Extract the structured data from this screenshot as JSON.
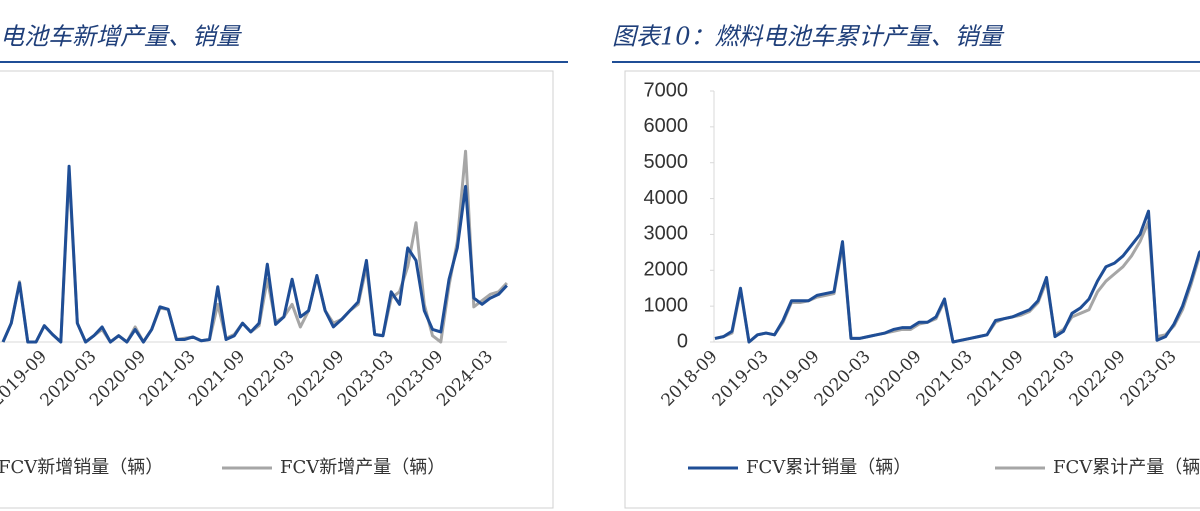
{
  "chart_data": [
    {
      "type": "line",
      "title": "电池车新增产量、销量",
      "categories": [
        null,
        null,
        null,
        null,
        null,
        "2019-09",
        null,
        null,
        null,
        null,
        null,
        "2020-03",
        null,
        null,
        null,
        null,
        null,
        "2020-09",
        null,
        null,
        null,
        null,
        null,
        "2021-03",
        null,
        null,
        null,
        null,
        null,
        "2021-09",
        null,
        null,
        null,
        null,
        null,
        "2022-03",
        null,
        null,
        null,
        null,
        null,
        "2022-09",
        null,
        null,
        null,
        null,
        null,
        "2023-03",
        null,
        null,
        null,
        null,
        null,
        "2023-09",
        null,
        null,
        null,
        null,
        null,
        "2024-03",
        null,
        null
      ],
      "series": [
        {
          "name": "FCV新增销量（辆）",
          "color": "#1f4e96",
          "values": [
            0,
            150,
            470,
            0,
            0,
            130,
            60,
            0,
            1400,
            150,
            0,
            50,
            120,
            0,
            50,
            0,
            100,
            0,
            100,
            280,
            260,
            20,
            20,
            40,
            10,
            20,
            440,
            20,
            50,
            150,
            80,
            150,
            620,
            140,
            200,
            500,
            200,
            250,
            530,
            250,
            120,
            180,
            250,
            320,
            650,
            60,
            50,
            400,
            300,
            750,
            650,
            250,
            100,
            80,
            500,
            750,
            1240,
            350,
            300,
            350,
            380,
            450
          ]
        },
        {
          "name": "FCV新增产量（辆）",
          "color": "#a6a6a6",
          "values": [
            0,
            150,
            480,
            0,
            0,
            130,
            60,
            0,
            1350,
            150,
            0,
            50,
            100,
            0,
            50,
            0,
            120,
            0,
            100,
            270,
            260,
            20,
            30,
            40,
            10,
            20,
            300,
            30,
            60,
            150,
            80,
            130,
            500,
            160,
            200,
            300,
            120,
            250,
            520,
            250,
            150,
            180,
            250,
            300,
            600,
            60,
            50,
            350,
            400,
            600,
            950,
            300,
            50,
            0,
            450,
            800,
            1520,
            280,
            330,
            380,
            400,
            470
          ]
        }
      ],
      "ylim": [
        0,
        2000
      ],
      "legend": "bottom"
    },
    {
      "type": "line",
      "title": "图表10：燃料电池车累计产量、销量",
      "categories": [
        "2018-09",
        null,
        null,
        null,
        null,
        null,
        "2019-03",
        null,
        null,
        null,
        null,
        null,
        "2019-09",
        null,
        null,
        null,
        null,
        null,
        "2020-03",
        null,
        null,
        null,
        null,
        null,
        "2020-09",
        null,
        null,
        null,
        null,
        null,
        "2021-03",
        null,
        null,
        null,
        null,
        null,
        "2021-09",
        null,
        null,
        null,
        null,
        null,
        "2022-03",
        null,
        null,
        null,
        null,
        null,
        "2022-09",
        null,
        null,
        null,
        null,
        null,
        "2023-03",
        null,
        null,
        null,
        null
      ],
      "series": [
        {
          "name": "FCV累计销量（辆）",
          "color": "#1f4e96",
          "values": [
            100,
            150,
            300,
            1500,
            0,
            200,
            250,
            200,
            600,
            1150,
            1150,
            1150,
            1300,
            1350,
            1400,
            2800,
            100,
            100,
            150,
            200,
            250,
            350,
            400,
            400,
            550,
            550,
            700,
            1200,
            0,
            50,
            100,
            150,
            200,
            600,
            650,
            700,
            800,
            900,
            1150,
            1800,
            150,
            300,
            800,
            950,
            1200,
            1700,
            2100,
            2200,
            2400,
            2700,
            3000,
            3650,
            50,
            150,
            500,
            1000,
            1700,
            2500,
            2700
          ]
        },
        {
          "name": "FCV累计产量（辆）",
          "color": "#a6a6a6",
          "values": [
            100,
            150,
            250,
            1450,
            0,
            200,
            250,
            200,
            550,
            1100,
            1100,
            1150,
            1250,
            1300,
            1350,
            2700,
            100,
            100,
            150,
            200,
            250,
            300,
            350,
            350,
            500,
            550,
            650,
            1150,
            0,
            50,
            100,
            150,
            200,
            550,
            650,
            700,
            750,
            850,
            1100,
            1700,
            200,
            350,
            700,
            800,
            900,
            1400,
            1700,
            1900,
            2100,
            2400,
            2800,
            3350,
            150,
            200,
            450,
            900,
            1600,
            2400,
            2800
          ]
        }
      ],
      "ylim": [
        0,
        7000
      ],
      "yticks": [
        0,
        1000,
        2000,
        3000,
        4000,
        5000,
        6000,
        7000
      ],
      "legend": "bottom"
    }
  ]
}
